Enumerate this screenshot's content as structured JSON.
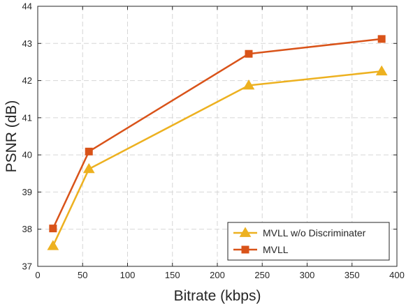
{
  "chart_data": {
    "type": "line",
    "title": "",
    "xlabel": "Bitrate (kbps)",
    "ylabel": "PSNR (dB)",
    "xlim": [
      0,
      400
    ],
    "ylim": [
      37,
      44
    ],
    "xticks": [
      0,
      50,
      100,
      150,
      200,
      250,
      300,
      350,
      400
    ],
    "yticks": [
      37,
      38,
      39,
      40,
      41,
      42,
      43,
      44
    ],
    "grid": true,
    "legend_position": "bottom-right",
    "series": [
      {
        "name": "MVLL w/o Discriminater",
        "color": "#EDB120",
        "marker": "triangle",
        "x": [
          17,
          57,
          235,
          383
        ],
        "y": [
          37.55,
          39.62,
          41.87,
          42.25
        ]
      },
      {
        "name": "MVLL",
        "color": "#D95319",
        "marker": "square",
        "x": [
          17,
          57,
          235,
          383
        ],
        "y": [
          38.02,
          40.09,
          42.72,
          43.12
        ]
      }
    ]
  }
}
